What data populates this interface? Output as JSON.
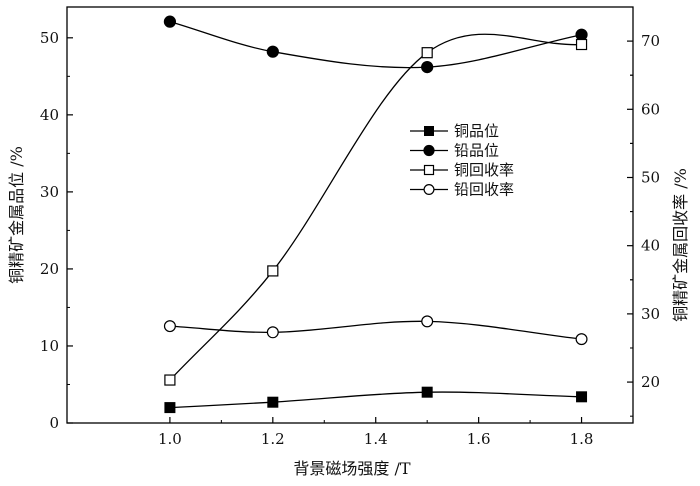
{
  "chart_data": {
    "type": "line",
    "xlabel": "背景磁场强度 /T",
    "ylabel_left": "铜精矿金属品位 /%",
    "ylabel_right": "铜精矿金属回收率 /%",
    "xlim": [
      0.8,
      1.9
    ],
    "ylim_left": [
      0,
      54
    ],
    "ylim_right": [
      14,
      75
    ],
    "xticks": [
      1.0,
      1.2,
      1.4,
      1.6,
      1.8
    ],
    "yticks_left": [
      0,
      10,
      20,
      30,
      40,
      50
    ],
    "yticks_right": [
      20,
      30,
      40,
      50,
      60,
      70
    ],
    "x": [
      1.0,
      1.2,
      1.5,
      1.8
    ],
    "series": [
      {
        "name": "铜品位",
        "axis": "left",
        "marker": "filled-square",
        "values": [
          2.0,
          2.7,
          4.0,
          3.4
        ]
      },
      {
        "name": "铅品位",
        "axis": "left",
        "marker": "filled-circle",
        "values": [
          52.1,
          48.2,
          46.2,
          50.4
        ]
      },
      {
        "name": "铜回收率",
        "axis": "right",
        "marker": "open-square",
        "values": [
          20.3,
          36.3,
          68.3,
          69.5
        ]
      },
      {
        "name": "铅回收率",
        "axis": "right",
        "marker": "open-circle",
        "values": [
          28.2,
          27.3,
          28.9,
          26.3
        ]
      }
    ],
    "legend_position": "upper-right",
    "grid": false
  }
}
